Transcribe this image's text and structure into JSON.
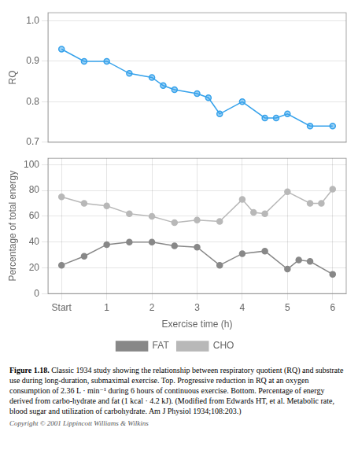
{
  "chart_data": [
    {
      "type": "line",
      "y_label": "RQ",
      "x": [
        0,
        0.5,
        1.0,
        1.5,
        2.0,
        2.25,
        2.5,
        3.0,
        3.25,
        3.5,
        4.0,
        4.5,
        4.75,
        5.0,
        5.5,
        6.0
      ],
      "values": [
        0.93,
        0.9,
        0.9,
        0.87,
        0.86,
        0.84,
        0.83,
        0.82,
        0.81,
        0.77,
        0.8,
        0.76,
        0.76,
        0.77,
        0.74,
        0.74
      ],
      "xlim": [
        -0.3,
        6.3
      ],
      "ylim": [
        0.7,
        1.02
      ],
      "yticks": [
        0.7,
        0.8,
        0.9,
        {
          "value": 1.0,
          "label": "1.0"
        }
      ],
      "tick_labels": "y",
      "grid": true
    },
    {
      "type": "line",
      "x_label": "Exercise time (h)",
      "y_label": "Percentage of total energy",
      "series": [
        {
          "name": "FAT",
          "color": "#888888",
          "x": [
            0,
            0.5,
            1.0,
            1.5,
            2.0,
            2.5,
            3.0,
            3.5,
            4.0,
            4.5,
            5.0,
            5.25,
            5.5,
            6.0
          ],
          "values": [
            22,
            29,
            38,
            40,
            40,
            37,
            36,
            22,
            31,
            33,
            19,
            26,
            25,
            15
          ]
        },
        {
          "name": "CHO",
          "color": "#b8b8b8",
          "x": [
            0,
            0.5,
            1.0,
            1.5,
            2.0,
            2.5,
            3.0,
            3.5,
            4.0,
            4.25,
            4.5,
            5.0,
            5.5,
            5.75,
            6.0
          ],
          "values": [
            75,
            70,
            68,
            62,
            60,
            55,
            57,
            56,
            73,
            63,
            62,
            79,
            70,
            70,
            81
          ]
        }
      ],
      "xlim": [
        -0.3,
        6.3
      ],
      "xticks": [
        {
          "value": 0,
          "label": "Start"
        },
        1,
        2,
        3,
        4,
        5,
        6
      ],
      "ylim": [
        0,
        105
      ],
      "yticks": [
        0,
        20,
        40,
        60,
        80,
        100
      ],
      "grid": true,
      "legend": "bottom",
      "annotations": [
        "Figure 1.18.",
        "  Classic 1934 study showing the relationship between respiratory quotient (RQ) and substrate use during long-duration, submaximal exercise. Top. Progressive reduction in RQ at an oxygen consumption of 2.36 L · min⁻¹ during 6 hours of continuous exercise. Bottom. Percentage of energy derived from carbo-hydrate and fat (1 kcal · 4.2 kJ). (Modified from Edwards HT, et al. Metabolic rate, blood sugar and utilization of carbohydrate. Am J Physiol 1934;108:203.)",
        "Copyright © 2001 Lippincott Williams & Wilkins"
      ]
    }
  ]
}
